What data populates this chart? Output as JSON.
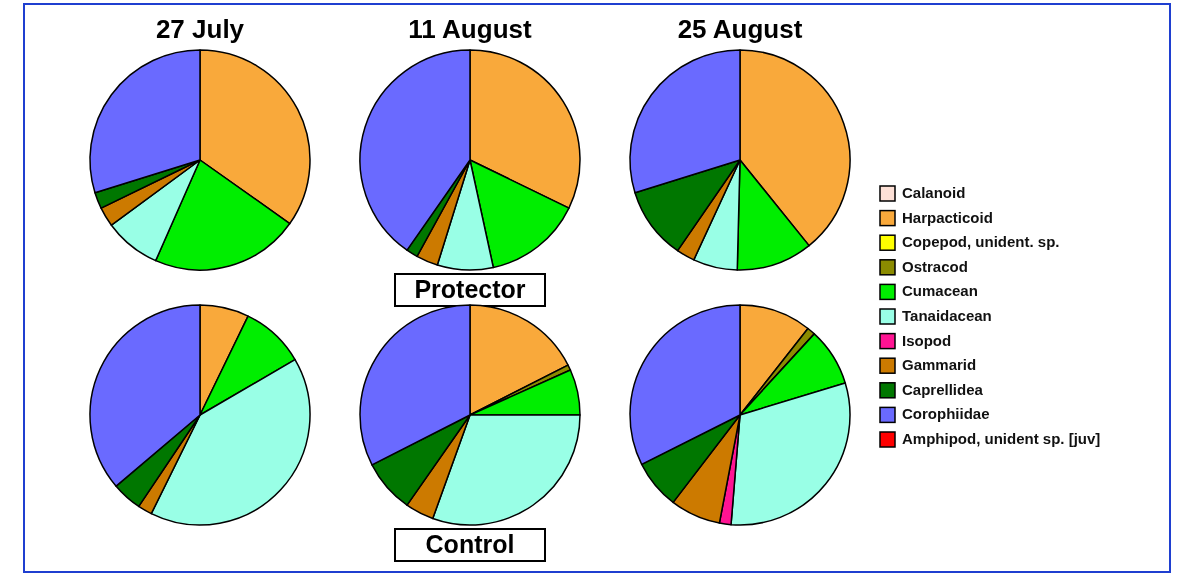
{
  "chart_data": [
    {
      "type": "pie",
      "title": "27 July",
      "categories": [
        null,
        null,
        null,
        null,
        null,
        null
      ],
      "values": [
        34.8,
        21.8,
        8.3,
        2.9,
        2.4,
        29.8
      ],
      "colors": [
        "#f9a93b",
        "#00ee00",
        "#99ffe6",
        "#cc7a00",
        "#007700",
        "#6a6aff"
      ]
    },
    {
      "type": "pie",
      "title": "11 August",
      "annotations": [
        "Protector"
      ],
      "categories": [
        null,
        null,
        null,
        null,
        null,
        null
      ],
      "values": [
        32.2,
        14.4,
        8.2,
        3.2,
        1.7,
        40.3
      ],
      "colors": [
        "#f9a93b",
        "#00ee00",
        "#99ffe6",
        "#cc7a00",
        "#007700",
        "#6a6aff"
      ]
    },
    {
      "type": "pie",
      "title": "25 August",
      "legend": "right",
      "categories": [
        "Calanoid",
        "Harpacticoid",
        "Copepod, unident. sp.",
        "Ostracod",
        "Cumacean",
        "Tanaidacean",
        "Isopod",
        "Gammarid",
        "Caprellidea",
        "Corophiidae",
        "Amphipod, unident sp. [juv]"
      ],
      "values": [
        0,
        39.2,
        0,
        0,
        11.2,
        6.5,
        0,
        2.7,
        10.6,
        29.8,
        0
      ],
      "colors": [
        "#fde0d6",
        "#f9a93b",
        "#ffff00",
        "#8b8b00",
        "#00ee00",
        "#99ffe6",
        "#ff1493",
        "#cc7a00",
        "#007700",
        "#6a6aff",
        "#ff0000"
      ]
    },
    {
      "type": "pie",
      "categories": [
        null,
        null,
        null,
        null,
        null,
        null
      ],
      "values": [
        7.2,
        9.4,
        40.7,
        2.1,
        4.4,
        36.2
      ],
      "colors": [
        "#f9a93b",
        "#00ee00",
        "#99ffe6",
        "#cc7a00",
        "#007700",
        "#6a6aff"
      ]
    },
    {
      "type": "pie",
      "annotations": [
        "Control"
      ],
      "categories": [
        null,
        null,
        null,
        null,
        null,
        null,
        null
      ],
      "values": [
        17.5,
        0.8,
        6.7,
        30.5,
        4.2,
        7.8,
        32.5
      ],
      "colors": [
        "#f9a93b",
        "#8b8b00",
        "#00ee00",
        "#99ffe6",
        "#cc7a00",
        "#007700",
        "#6a6aff"
      ]
    },
    {
      "type": "pie",
      "categories": [
        null,
        null,
        null,
        null,
        null,
        null,
        null,
        null
      ],
      "values": [
        10.6,
        1.2,
        8.5,
        31.0,
        1.7,
        7.4,
        7.2,
        32.4
      ],
      "colors": [
        "#f9a93b",
        "#8b8b00",
        "#00ee00",
        "#99ffe6",
        "#ff1493",
        "#cc7a00",
        "#007700",
        "#6a6aff"
      ]
    }
  ]
}
